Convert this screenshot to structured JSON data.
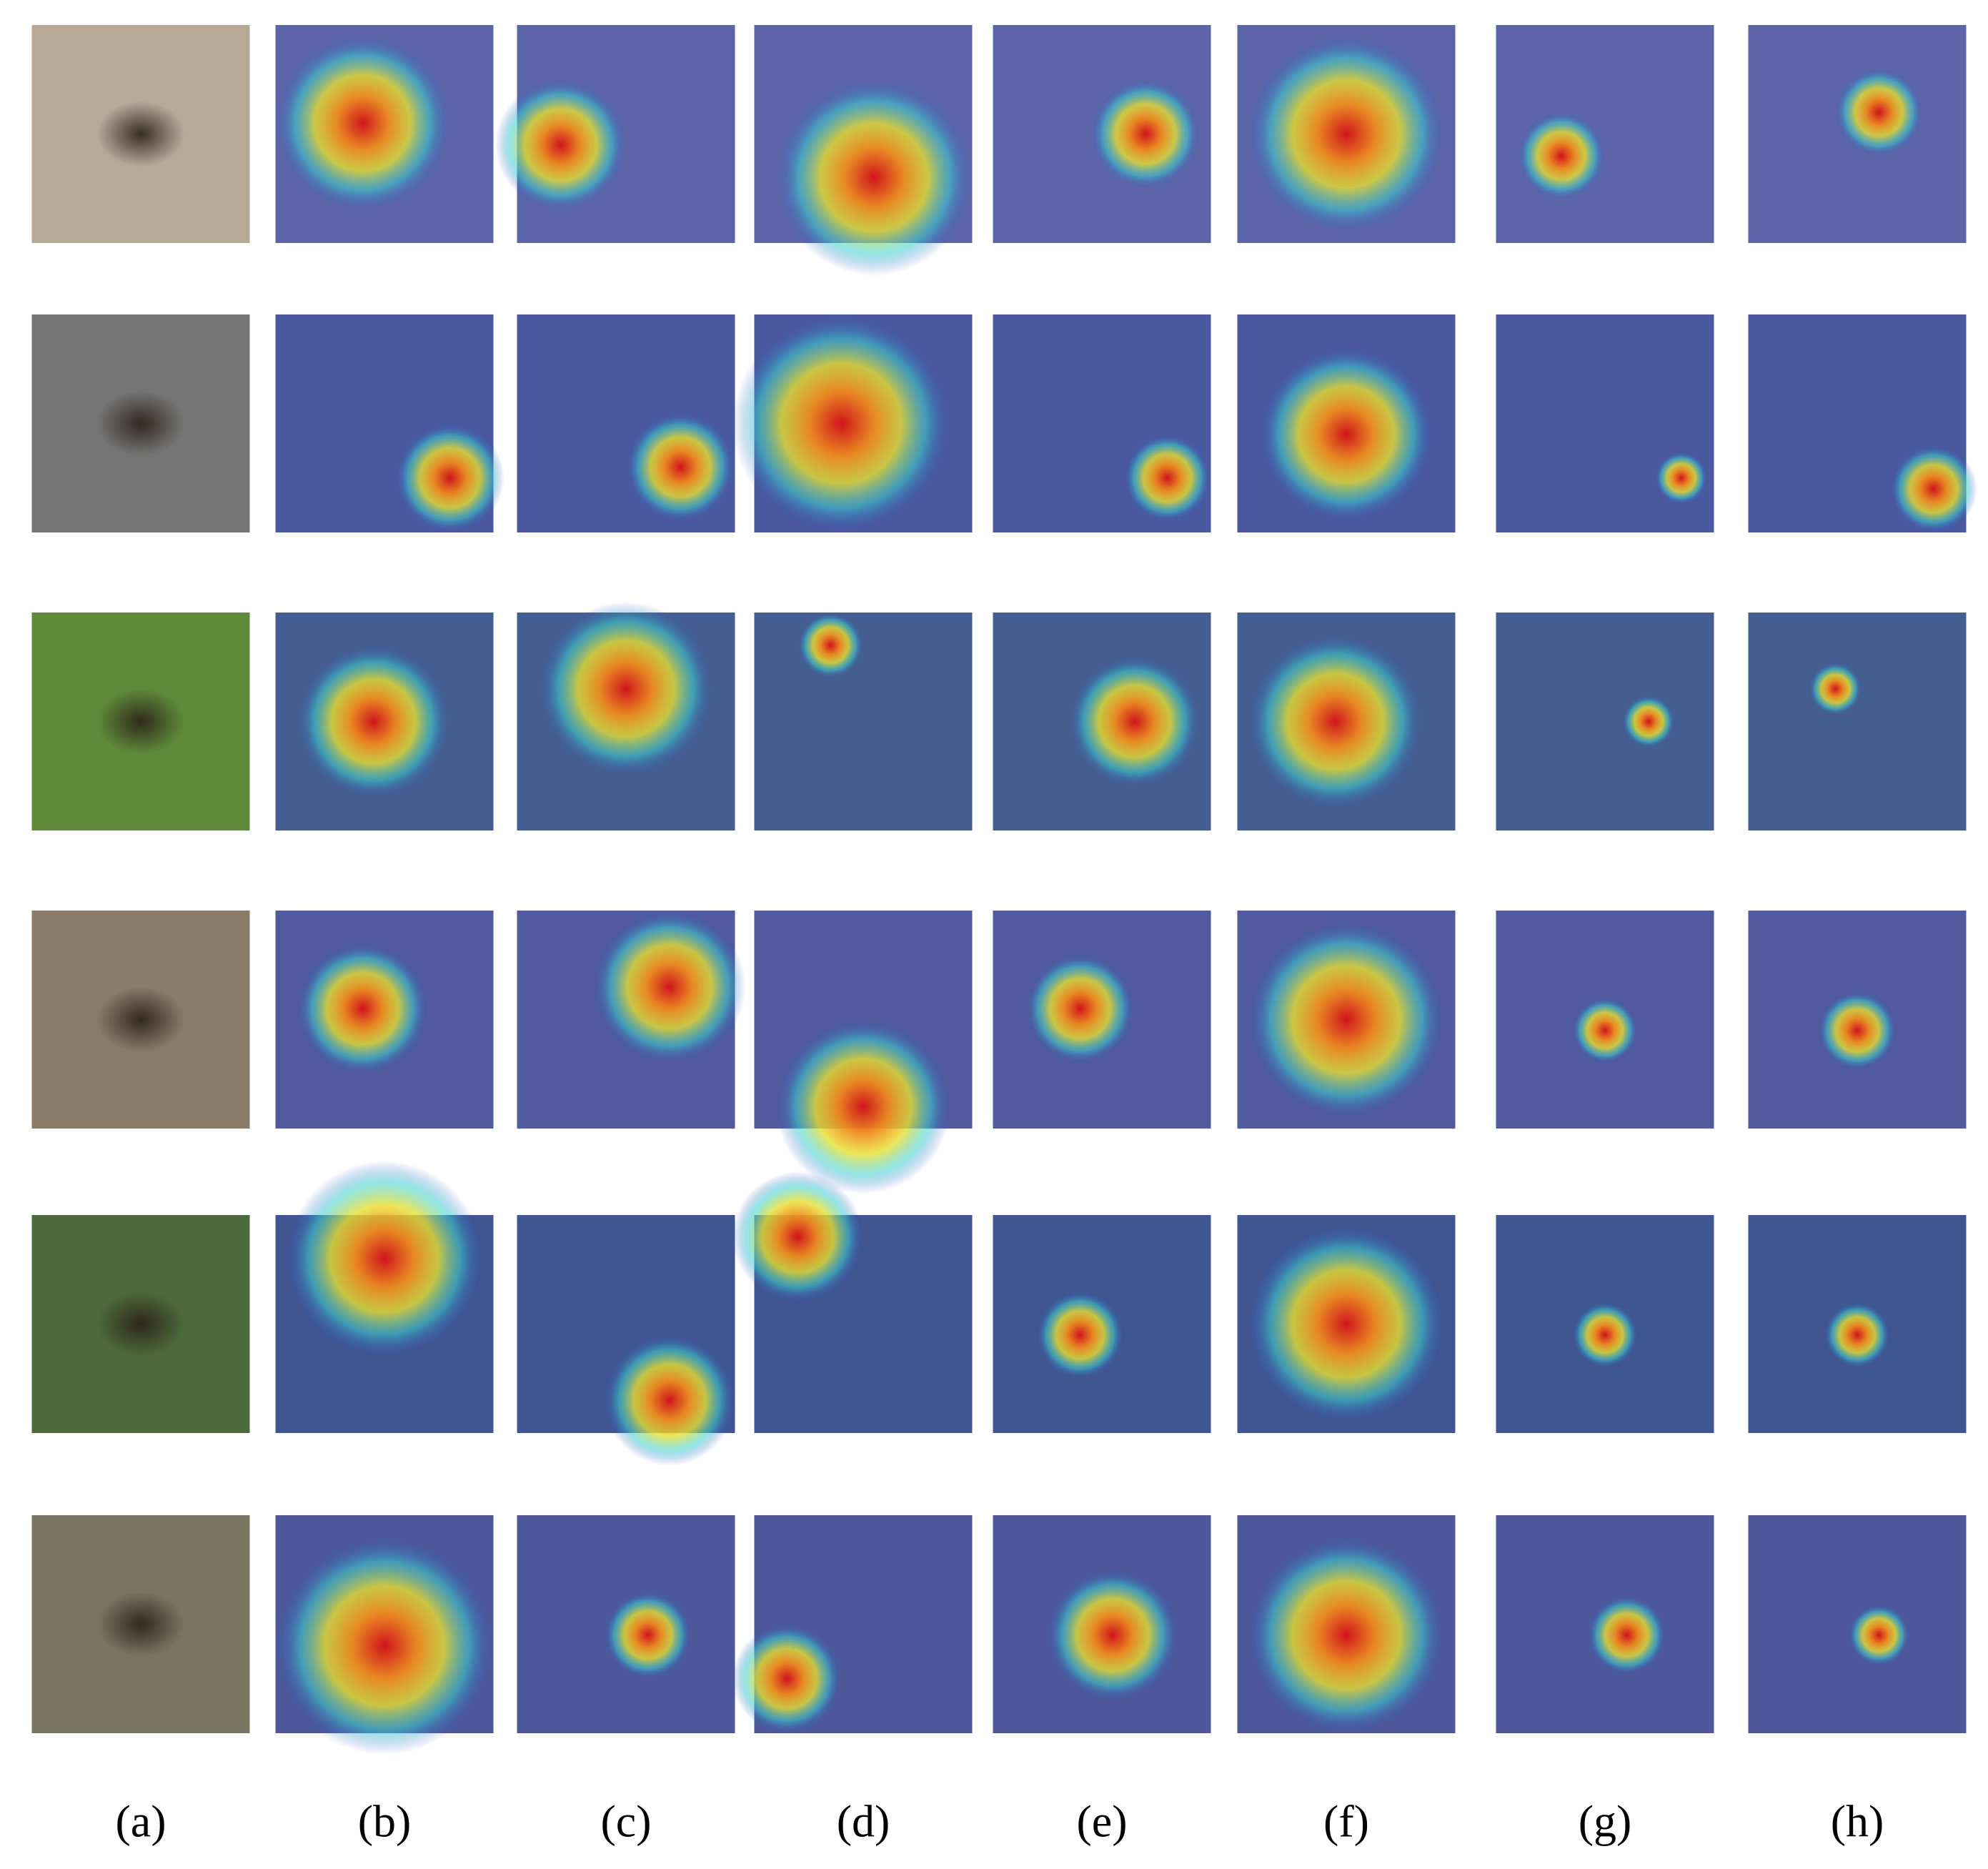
{
  "columns": [
    "(a)",
    "(b)",
    "(c)",
    "(d)",
    "(e)",
    "(f)",
    "(g)",
    "(h)"
  ]
}
